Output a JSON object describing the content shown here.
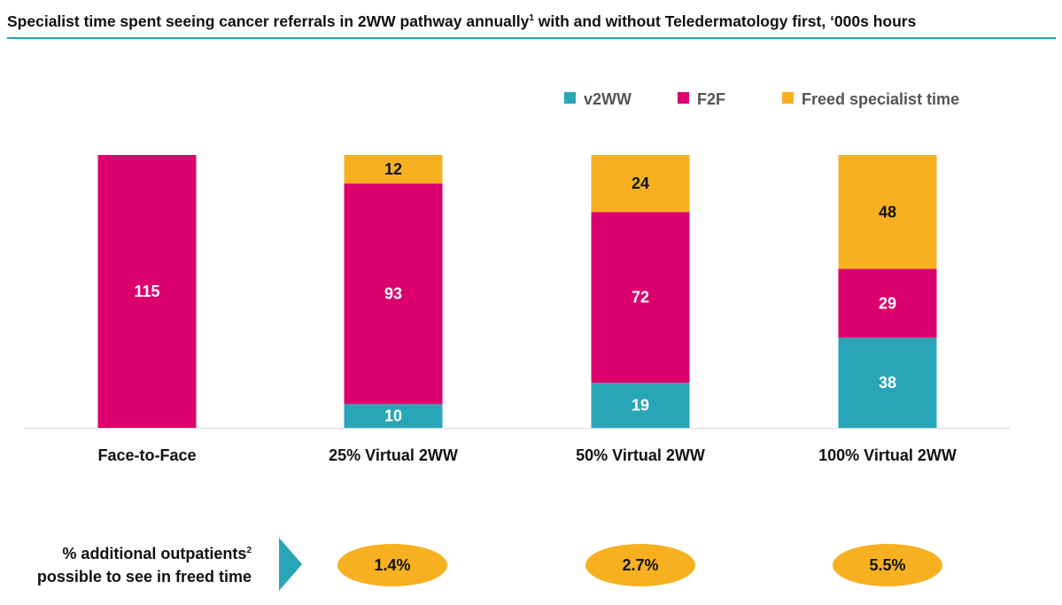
{
  "title": {
    "text": "Specialist time spent seeing cancer referrals in 2WW pathway annually",
    "superscript": "1",
    "text_after": " with and without Teledermatology first, ‘000s hours"
  },
  "colors": {
    "v2WW": "#28a5b7",
    "F2F": "#dc006e",
    "Freed specialist time": "#f7b020",
    "accent": "#28a5b7",
    "text": "#111111"
  },
  "chart_data": {
    "type": "bar",
    "stacked": true,
    "categories": [
      "Face-to-Face",
      "25% Virtual 2WW",
      "50% Virtual 2WW",
      "100% Virtual 2WW"
    ],
    "series": [
      {
        "name": "v2WW",
        "values": [
          0,
          10,
          19,
          38
        ]
      },
      {
        "name": "F2F",
        "values": [
          115,
          93,
          72,
          29
        ]
      },
      {
        "name": "Freed specialist time",
        "values": [
          0,
          12,
          24,
          48
        ]
      }
    ],
    "data_labels": [
      [
        "",
        "115",
        ""
      ],
      [
        "10",
        "93",
        "12"
      ],
      [
        "19",
        "72",
        "24"
      ],
      [
        "38",
        "29",
        "48"
      ]
    ],
    "ylim": [
      0,
      115
    ],
    "xlabel": "",
    "ylabel": "",
    "legend_position": "top-right",
    "grid": false
  },
  "footer": {
    "label_line1": "% additional outpatients",
    "label_sup": "2",
    "label_line2": "possible to see in freed time",
    "values": [
      "",
      "1.4%",
      "2.7%",
      "5.5%"
    ]
  }
}
